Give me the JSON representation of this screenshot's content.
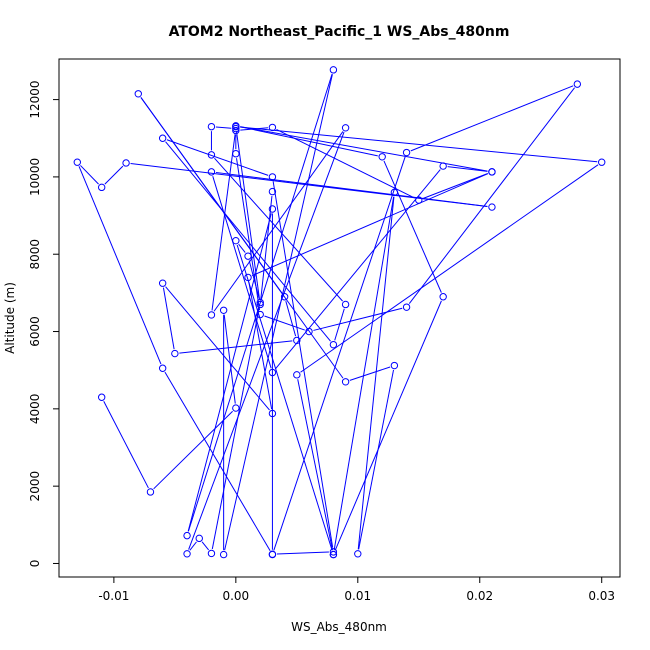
{
  "chart_data": {
    "type": "line",
    "title": "ATOM2 Northeast_Pacific_1 WS_Abs_480nm",
    "xlabel": "WS_Abs_480nm",
    "ylabel": "Altitude (m)",
    "xlim": [
      -0.0145,
      0.0315
    ],
    "ylim": [
      -350,
      13050
    ],
    "xticks": [
      -0.01,
      0.0,
      0.01,
      0.02,
      0.03
    ],
    "xtick_labels": [
      "-0.01",
      "0.00",
      "0.01",
      "0.02",
      "0.03"
    ],
    "yticks": [
      0,
      2000,
      4000,
      6000,
      8000,
      10000,
      12000
    ],
    "ytick_labels": [
      "0",
      "2000",
      "4000",
      "6000",
      "8000",
      "10000",
      "12000"
    ],
    "grid": false,
    "series": [
      {
        "color": "#0000ff",
        "marker": "open-circle",
        "x": [
          -0.011,
          -0.007,
          0.0,
          -0.001,
          -0.001,
          0.008,
          -0.004,
          0.003,
          0.003,
          0.008,
          0.003,
          -0.006,
          0.008,
          0.009,
          -0.002,
          -0.002,
          0.0,
          -0.002,
          0.009,
          -0.004,
          -0.003,
          -0.002,
          0.002,
          0.001,
          0.0,
          0.008,
          0.013,
          0.01,
          0.013,
          0.009,
          -0.008,
          0.004,
          0.005,
          -0.005,
          -0.006,
          0.003,
          0.001,
          0.021,
          0.017,
          0.003,
          -0.002,
          0.021,
          -0.009,
          -0.011,
          -0.013,
          -0.006,
          0.003,
          0.014,
          0.028,
          0.014,
          0.006,
          0.002,
          0.0,
          0.0,
          0.003,
          0.015,
          0.021,
          0.0,
          0.012,
          0.017,
          0.008,
          0.005,
          0.03,
          0.0,
          0.002,
          0.003
        ],
        "y": [
          4300,
          1850,
          4020,
          6550,
          230,
          12770,
          720,
          9170,
          240,
          300,
          10000,
          11000,
          5660,
          6700,
          10570,
          11300,
          11250,
          6430,
          11270,
          250,
          650,
          260,
          6750,
          7950,
          8350,
          230,
          9600,
          250,
          5120,
          4700,
          12150,
          6900,
          5770,
          5430,
          7250,
          3880,
          7400,
          10130,
          10280,
          4940,
          10130,
          9220,
          10360,
          9730,
          10380,
          5050,
          230,
          10630,
          12400,
          6630,
          6000,
          6440,
          10600,
          11200,
          11280,
          9400,
          10130,
          11320,
          10520,
          6900,
          230,
          4880,
          10380,
          11300,
          6700,
          9620
        ]
      }
    ]
  }
}
